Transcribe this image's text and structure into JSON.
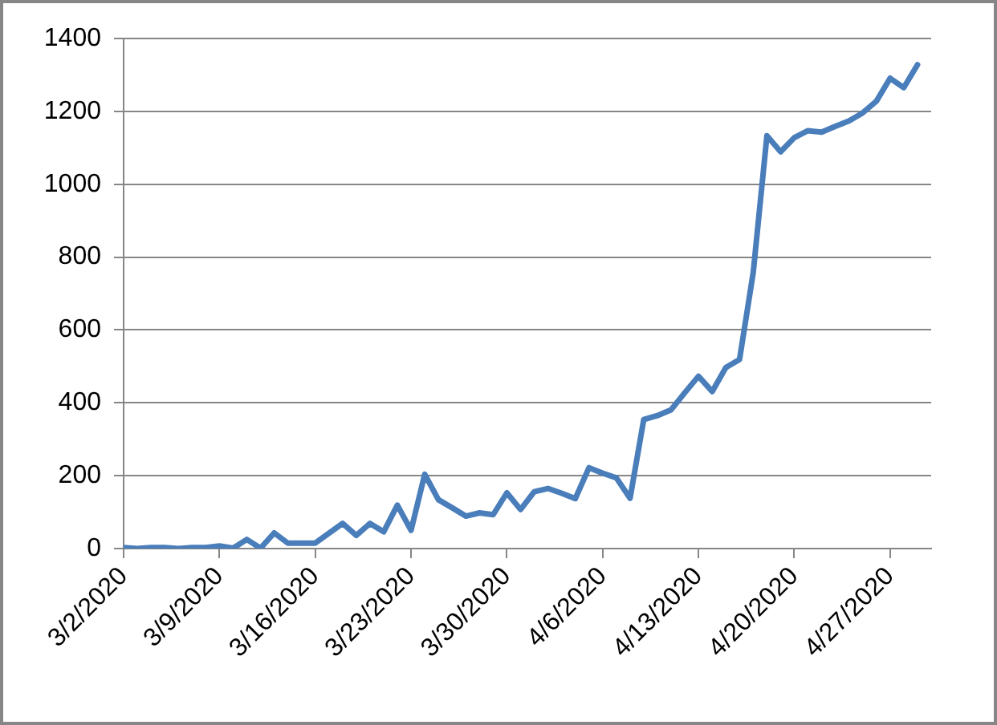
{
  "chart_data": {
    "type": "line",
    "x": [
      "2020-03-02",
      "2020-03-03",
      "2020-03-04",
      "2020-03-05",
      "2020-03-06",
      "2020-03-07",
      "2020-03-08",
      "2020-03-09",
      "2020-03-10",
      "2020-03-11",
      "2020-03-12",
      "2020-03-13",
      "2020-03-14",
      "2020-03-15",
      "2020-03-16",
      "2020-03-17",
      "2020-03-18",
      "2020-03-19",
      "2020-03-20",
      "2020-03-21",
      "2020-03-22",
      "2020-03-23",
      "2020-03-24",
      "2020-03-25",
      "2020-03-26",
      "2020-03-27",
      "2020-03-28",
      "2020-03-29",
      "2020-03-30",
      "2020-03-31",
      "2020-04-01",
      "2020-04-02",
      "2020-04-03",
      "2020-04-04",
      "2020-04-05",
      "2020-04-06",
      "2020-04-07",
      "2020-04-08",
      "2020-04-09",
      "2020-04-10",
      "2020-04-11",
      "2020-04-12",
      "2020-04-13",
      "2020-04-14",
      "2020-04-15",
      "2020-04-16",
      "2020-04-17",
      "2020-04-18",
      "2020-04-19",
      "2020-04-20",
      "2020-04-21",
      "2020-04-22",
      "2020-04-23",
      "2020-04-24",
      "2020-04-25",
      "2020-04-26",
      "2020-04-27",
      "2020-04-28",
      "2020-04-29"
    ],
    "series": [
      {
        "color": "#4a7ebb",
        "values": [
          3,
          0,
          3,
          3,
          0,
          3,
          3,
          7,
          1,
          25,
          1,
          43,
          15,
          15,
          15,
          42,
          69,
          36,
          69,
          46,
          119,
          50,
          204,
          134,
          112,
          89,
          98,
          93,
          153,
          107,
          156,
          165,
          152,
          137,
          222,
          207,
          194,
          138,
          354,
          365,
          381,
          428,
          473,
          431,
          497,
          519,
          758,
          1133,
          1089,
          1128,
          1147,
          1143,
          1159,
          1174,
          1196,
          1228,
          1291,
          1265,
          1328
        ]
      }
    ],
    "xlim": [
      "2020-03-02",
      "2020-04-30"
    ],
    "xticks": [
      {
        "value": "2020-03-02",
        "label": "3/2/2020"
      },
      {
        "value": "2020-03-09",
        "label": "3/9/2020"
      },
      {
        "value": "2020-03-16",
        "label": "3/16/2020"
      },
      {
        "value": "2020-03-23",
        "label": "3/23/2020"
      },
      {
        "value": "2020-03-30",
        "label": "3/30/2020"
      },
      {
        "value": "2020-04-06",
        "label": "4/6/2020"
      },
      {
        "value": "2020-04-13",
        "label": "4/13/2020"
      },
      {
        "value": "2020-04-20",
        "label": "4/20/2020"
      },
      {
        "value": "2020-04-27",
        "label": "4/27/2020"
      }
    ],
    "ylim": [
      0,
      1400
    ],
    "yticks": [
      0,
      200,
      400,
      600,
      800,
      1000,
      1200,
      1400
    ],
    "grid": "y"
  }
}
